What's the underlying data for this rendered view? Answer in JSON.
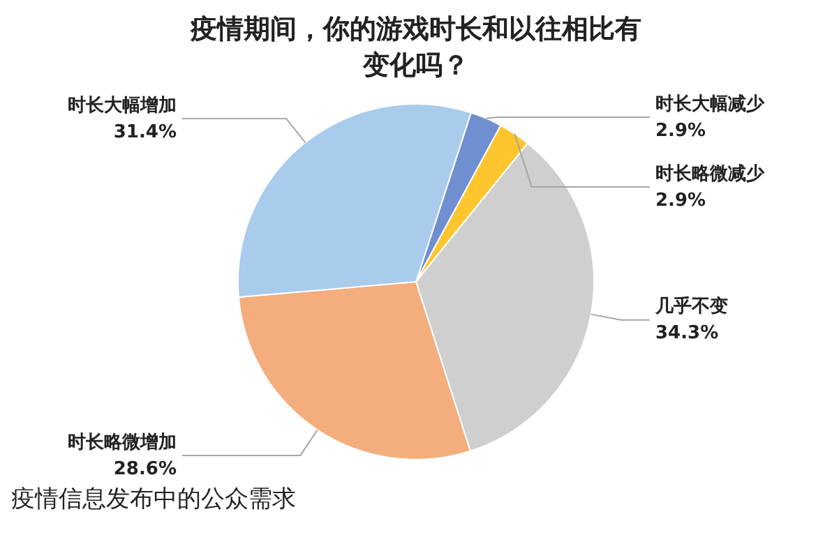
{
  "chart_data": {
    "type": "pie",
    "title": "疫情期间，你的游戏时长和以往相比有变化吗？",
    "categories": [
      "时长大幅减少",
      "时长略微减少",
      "几乎不变",
      "时长略微增加",
      "时长大幅增加"
    ],
    "values": [
      2.9,
      2.9,
      34.3,
      28.6,
      31.4
    ],
    "value_labels": [
      "2.9%",
      "2.9%",
      "34.3%",
      "28.6%",
      "31.4%"
    ],
    "colors": [
      "#6f8fd0",
      "#ffc52e",
      "#cfcfcf",
      "#f4ad7c",
      "#a9cbec"
    ],
    "legend": false,
    "annotations": [
      "疫情信息发布中的公众需求"
    ]
  }
}
